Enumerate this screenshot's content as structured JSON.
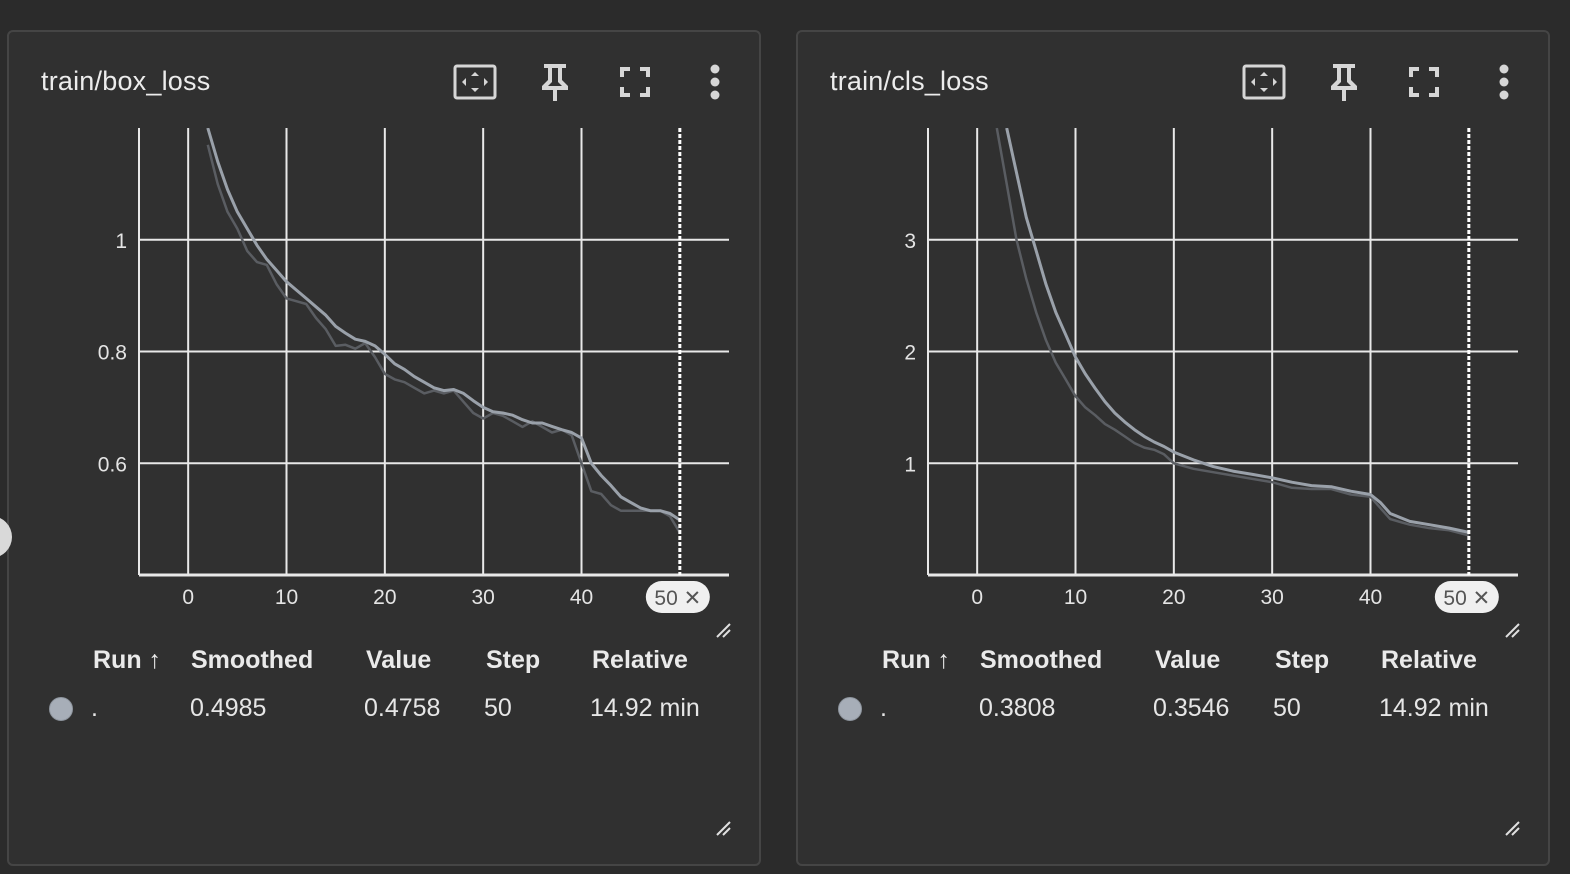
{
  "colors": {
    "background": "#2b2b2b",
    "card": "#303030",
    "grid": "#e8e8e8",
    "series_smoothed": "#9aa1aa",
    "series_raw": "#5a5d62",
    "run_dot": "#a7aeb8"
  },
  "icons": [
    "fit-domain-icon",
    "pin-icon",
    "fullscreen-icon",
    "more-vert-icon",
    "close-icon",
    "resize-icon"
  ],
  "table_headers": {
    "run": "Run ↑",
    "smoothed": "Smoothed",
    "value": "Value",
    "step": "Step",
    "relative": "Relative"
  },
  "cards": [
    {
      "title": "train/box_loss",
      "step_chip": "50 ✕",
      "row": {
        "run": ".",
        "smoothed": "0.4985",
        "value": "0.4758",
        "step": "50",
        "relative": "14.92 min"
      }
    },
    {
      "title": "train/cls_loss",
      "step_chip": "50 ✕",
      "row": {
        "run": ".",
        "smoothed": "0.3808",
        "value": "0.3546",
        "step": "50",
        "relative": "14.92 min"
      }
    }
  ],
  "chart_data": [
    {
      "type": "line",
      "title": "train/box_loss",
      "xlim": [
        -5,
        55
      ],
      "ylim": [
        0.4,
        1.2
      ],
      "xticks": [
        0,
        10,
        20,
        30,
        40
      ],
      "yticks": [
        0.6,
        0.8,
        1.0
      ],
      "ytick_labels": [
        "0.6",
        "0.8",
        "1"
      ],
      "cursor_x": 50,
      "grid": true,
      "series": [
        {
          "role": "smoothed",
          "x": [
            2,
            3,
            4,
            5,
            6,
            7,
            8,
            9,
            10,
            11,
            12,
            13,
            14,
            15,
            16,
            17,
            18,
            19,
            20,
            21,
            22,
            23,
            24,
            25,
            26,
            27,
            28,
            29,
            30,
            31,
            32,
            33,
            34,
            35,
            36,
            37,
            38,
            39,
            40,
            41,
            42,
            43,
            44,
            45,
            46,
            47,
            48,
            49,
            50
          ],
          "values": [
            1.2,
            1.14,
            1.09,
            1.05,
            1.02,
            0.99,
            0.965,
            0.945,
            0.925,
            0.91,
            0.895,
            0.88,
            0.865,
            0.845,
            0.833,
            0.822,
            0.818,
            0.81,
            0.795,
            0.778,
            0.768,
            0.755,
            0.745,
            0.735,
            0.73,
            0.732,
            0.725,
            0.712,
            0.7,
            0.692,
            0.69,
            0.686,
            0.678,
            0.672,
            0.672,
            0.666,
            0.66,
            0.655,
            0.645,
            0.6,
            0.578,
            0.56,
            0.54,
            0.53,
            0.52,
            0.515,
            0.515,
            0.51,
            0.4985
          ]
        },
        {
          "role": "raw",
          "x": [
            2,
            3,
            4,
            5,
            6,
            7,
            8,
            9,
            10,
            11,
            12,
            13,
            14,
            15,
            16,
            17,
            18,
            19,
            20,
            21,
            22,
            23,
            24,
            25,
            26,
            27,
            28,
            29,
            30,
            31,
            32,
            33,
            34,
            35,
            36,
            37,
            38,
            39,
            40,
            41,
            42,
            43,
            44,
            45,
            46,
            47,
            48,
            49,
            50
          ],
          "values": [
            1.17,
            1.1,
            1.05,
            1.02,
            0.98,
            0.96,
            0.955,
            0.92,
            0.895,
            0.89,
            0.885,
            0.86,
            0.84,
            0.81,
            0.812,
            0.805,
            0.815,
            0.79,
            0.76,
            0.75,
            0.745,
            0.735,
            0.725,
            0.73,
            0.725,
            0.73,
            0.71,
            0.69,
            0.68,
            0.69,
            0.685,
            0.675,
            0.665,
            0.675,
            0.665,
            0.655,
            0.66,
            0.65,
            0.6,
            0.55,
            0.545,
            0.525,
            0.515,
            0.515,
            0.515,
            0.515,
            0.515,
            0.505,
            0.4758
          ]
        }
      ]
    },
    {
      "type": "line",
      "title": "train/cls_loss",
      "xlim": [
        -5,
        55
      ],
      "ylim": [
        0,
        4
      ],
      "xticks": [
        0,
        10,
        20,
        30,
        40
      ],
      "yticks": [
        1,
        2,
        3
      ],
      "ytick_labels": [
        "1",
        "2",
        "3"
      ],
      "cursor_x": 50,
      "grid": true,
      "series": [
        {
          "role": "smoothed",
          "x": [
            3,
            4,
            5,
            6,
            7,
            8,
            9,
            10,
            11,
            12,
            13,
            14,
            15,
            16,
            17,
            18,
            19,
            20,
            22,
            24,
            26,
            28,
            30,
            32,
            34,
            36,
            38,
            40,
            41,
            42,
            44,
            46,
            48,
            50
          ],
          "values": [
            4.0,
            3.6,
            3.2,
            2.9,
            2.6,
            2.35,
            2.15,
            1.95,
            1.8,
            1.67,
            1.55,
            1.45,
            1.37,
            1.3,
            1.24,
            1.19,
            1.15,
            1.1,
            1.03,
            0.97,
            0.93,
            0.9,
            0.87,
            0.83,
            0.8,
            0.79,
            0.75,
            0.72,
            0.65,
            0.55,
            0.48,
            0.45,
            0.42,
            0.3808
          ]
        },
        {
          "role": "raw",
          "x": [
            2,
            3,
            4,
            5,
            6,
            7,
            8,
            9,
            10,
            11,
            12,
            13,
            14,
            15,
            16,
            17,
            18,
            19,
            20,
            22,
            24,
            26,
            28,
            30,
            32,
            34,
            36,
            38,
            40,
            41,
            42,
            44,
            46,
            48,
            50
          ],
          "values": [
            4.0,
            3.5,
            3.0,
            2.65,
            2.35,
            2.1,
            1.9,
            1.75,
            1.6,
            1.5,
            1.43,
            1.35,
            1.3,
            1.24,
            1.18,
            1.14,
            1.12,
            1.08,
            1.0,
            0.95,
            0.92,
            0.89,
            0.86,
            0.83,
            0.78,
            0.77,
            0.77,
            0.72,
            0.7,
            0.6,
            0.5,
            0.45,
            0.42,
            0.4,
            0.3546
          ]
        }
      ]
    }
  ]
}
